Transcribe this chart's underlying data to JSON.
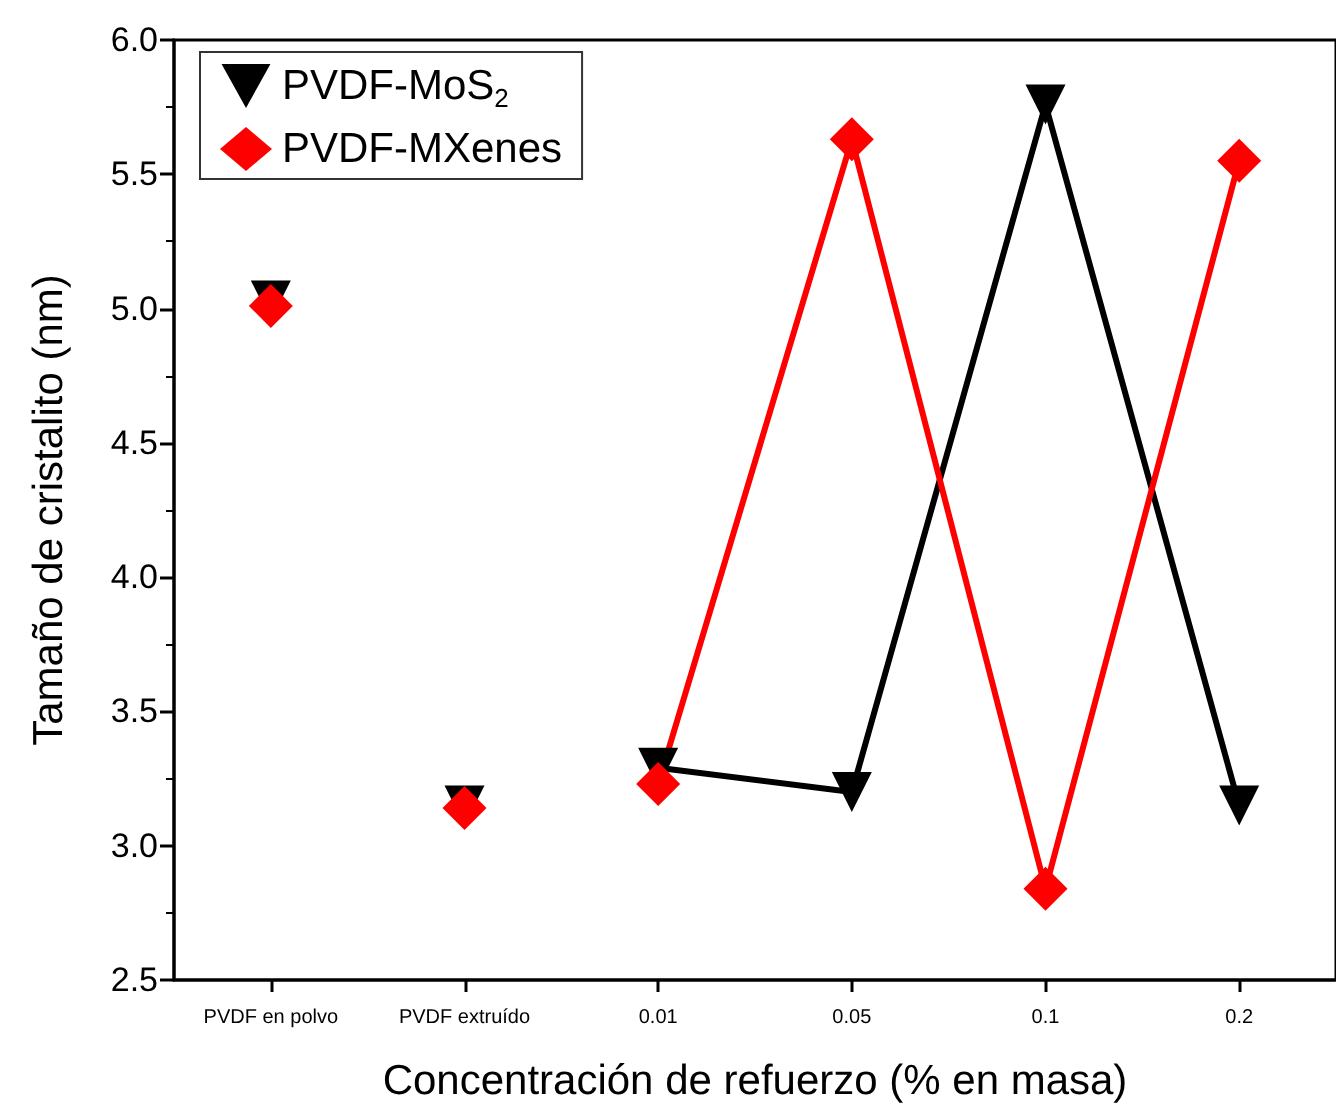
{
  "chart_data": {
    "type": "scatter",
    "xlabel": "Concentración de refuerzo (% en masa)",
    "ylabel": "Tamaño de cristalito (nm)",
    "categories": [
      "PVDF en polvo",
      "PVDF extruído",
      "0.01",
      "0.05",
      "0.1",
      "0.2"
    ],
    "series": [
      {
        "name": "PVDF-MoS$_{2}$",
        "marker": "triangle",
        "color": "#000000",
        "values": [
          5.03,
          3.15,
          3.29,
          3.2,
          5.76,
          3.15
        ]
      },
      {
        "name": "PVDF-MXenes",
        "marker": "diamond",
        "color": "#ff0000",
        "values": [
          5.01,
          3.14,
          3.23,
          5.63,
          2.84,
          5.55
        ]
      },
      {
        "type": "line",
        "marker": "none",
        "color": "#000000",
        "values": [
          null,
          null,
          3.29,
          3.2,
          5.76,
          3.15
        ]
      },
      {
        "type": "line",
        "marker": "none",
        "color": "#ff0000",
        "values": [
          null,
          null,
          3.23,
          5.63,
          2.84,
          5.55
        ]
      }
    ],
    "ylim": [
      2.5,
      6.0
    ],
    "yticks": [
      {
        "value": 2.5,
        "label": "2.5"
      },
      {
        "value": 3,
        "label": "3.0"
      },
      {
        "value": 3.5,
        "label": "3.5"
      },
      {
        "value": 4,
        "label": "4.0"
      },
      {
        "value": 4.5,
        "label": "4.5"
      },
      {
        "value": 5,
        "label": "5.0"
      },
      {
        "value": 5.5,
        "label": "5.5"
      },
      {
        "value": 6,
        "label": "6.0"
      }
    ],
    "grid": false,
    "legend": "top left"
  }
}
